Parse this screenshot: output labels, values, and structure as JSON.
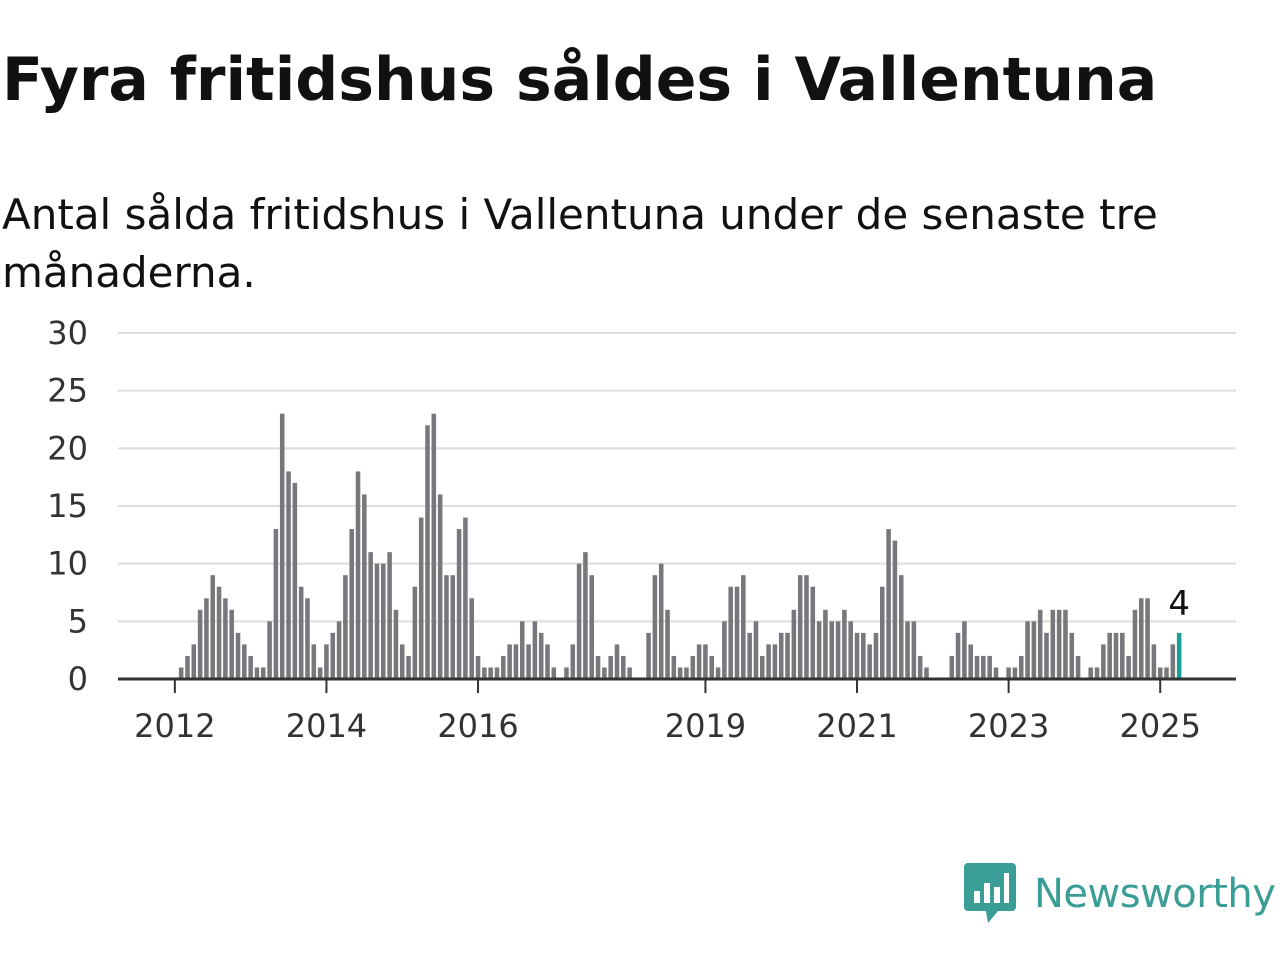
{
  "title": "Fyra fritidshus såldes i Vallentuna",
  "subtitle": "Antal sålda fritidshus i Vallentuna under de senaste tre månaderna.",
  "brand": {
    "name": "Newsworthy",
    "icon": "newsworthy-logo-icon",
    "color": "#3a9e96"
  },
  "colors": {
    "bar": "#78777c",
    "highlight": "#1a9e96",
    "grid": "#dddddd",
    "axis": "#333333"
  },
  "chart_data": {
    "type": "bar",
    "grid": true,
    "legend": "none",
    "ylim": [
      0,
      30
    ],
    "yticks": [
      0,
      5,
      10,
      15,
      20,
      25,
      30
    ],
    "xlim": [
      2011.25,
      2026.0
    ],
    "xticks": [
      {
        "value": 2012,
        "label": "2012"
      },
      {
        "value": 2014,
        "label": "2014"
      },
      {
        "value": 2016,
        "label": "2016"
      },
      {
        "value": 2019,
        "label": "2019"
      },
      {
        "value": 2021,
        "label": "2021"
      },
      {
        "value": 2023,
        "label": "2023"
      },
      {
        "value": 2025,
        "label": "2025"
      }
    ],
    "start": "2012-01",
    "values": [
      0,
      1,
      2,
      3,
      6,
      7,
      9,
      8,
      7,
      6,
      4,
      3,
      2,
      1,
      1,
      5,
      13,
      23,
      18,
      17,
      8,
      7,
      3,
      1,
      3,
      4,
      5,
      9,
      13,
      18,
      16,
      11,
      10,
      10,
      11,
      6,
      3,
      2,
      8,
      14,
      22,
      23,
      16,
      9,
      9,
      13,
      14,
      7,
      2,
      1,
      1,
      1,
      2,
      3,
      3,
      5,
      3,
      5,
      4,
      3,
      1,
      0,
      1,
      3,
      10,
      11,
      9,
      2,
      1,
      2,
      3,
      2,
      1,
      0,
      0,
      4,
      9,
      10,
      6,
      2,
      1,
      1,
      2,
      3,
      3,
      2,
      1,
      5,
      8,
      8,
      9,
      4,
      5,
      2,
      3,
      3,
      4,
      4,
      6,
      9,
      9,
      8,
      5,
      6,
      5,
      5,
      6,
      5,
      4,
      4,
      3,
      4,
      8,
      13,
      12,
      9,
      5,
      5,
      2,
      1,
      0,
      0,
      0,
      2,
      4,
      5,
      3,
      2,
      2,
      2,
      1,
      0,
      1,
      1,
      2,
      5,
      5,
      6,
      4,
      6,
      6,
      6,
      4,
      2,
      0,
      1,
      1,
      3,
      4,
      4,
      4,
      2,
      6,
      7,
      7,
      3,
      1,
      1,
      3,
      4
    ],
    "highlight": {
      "date": "2025-04",
      "value": 4,
      "label": "4"
    }
  }
}
